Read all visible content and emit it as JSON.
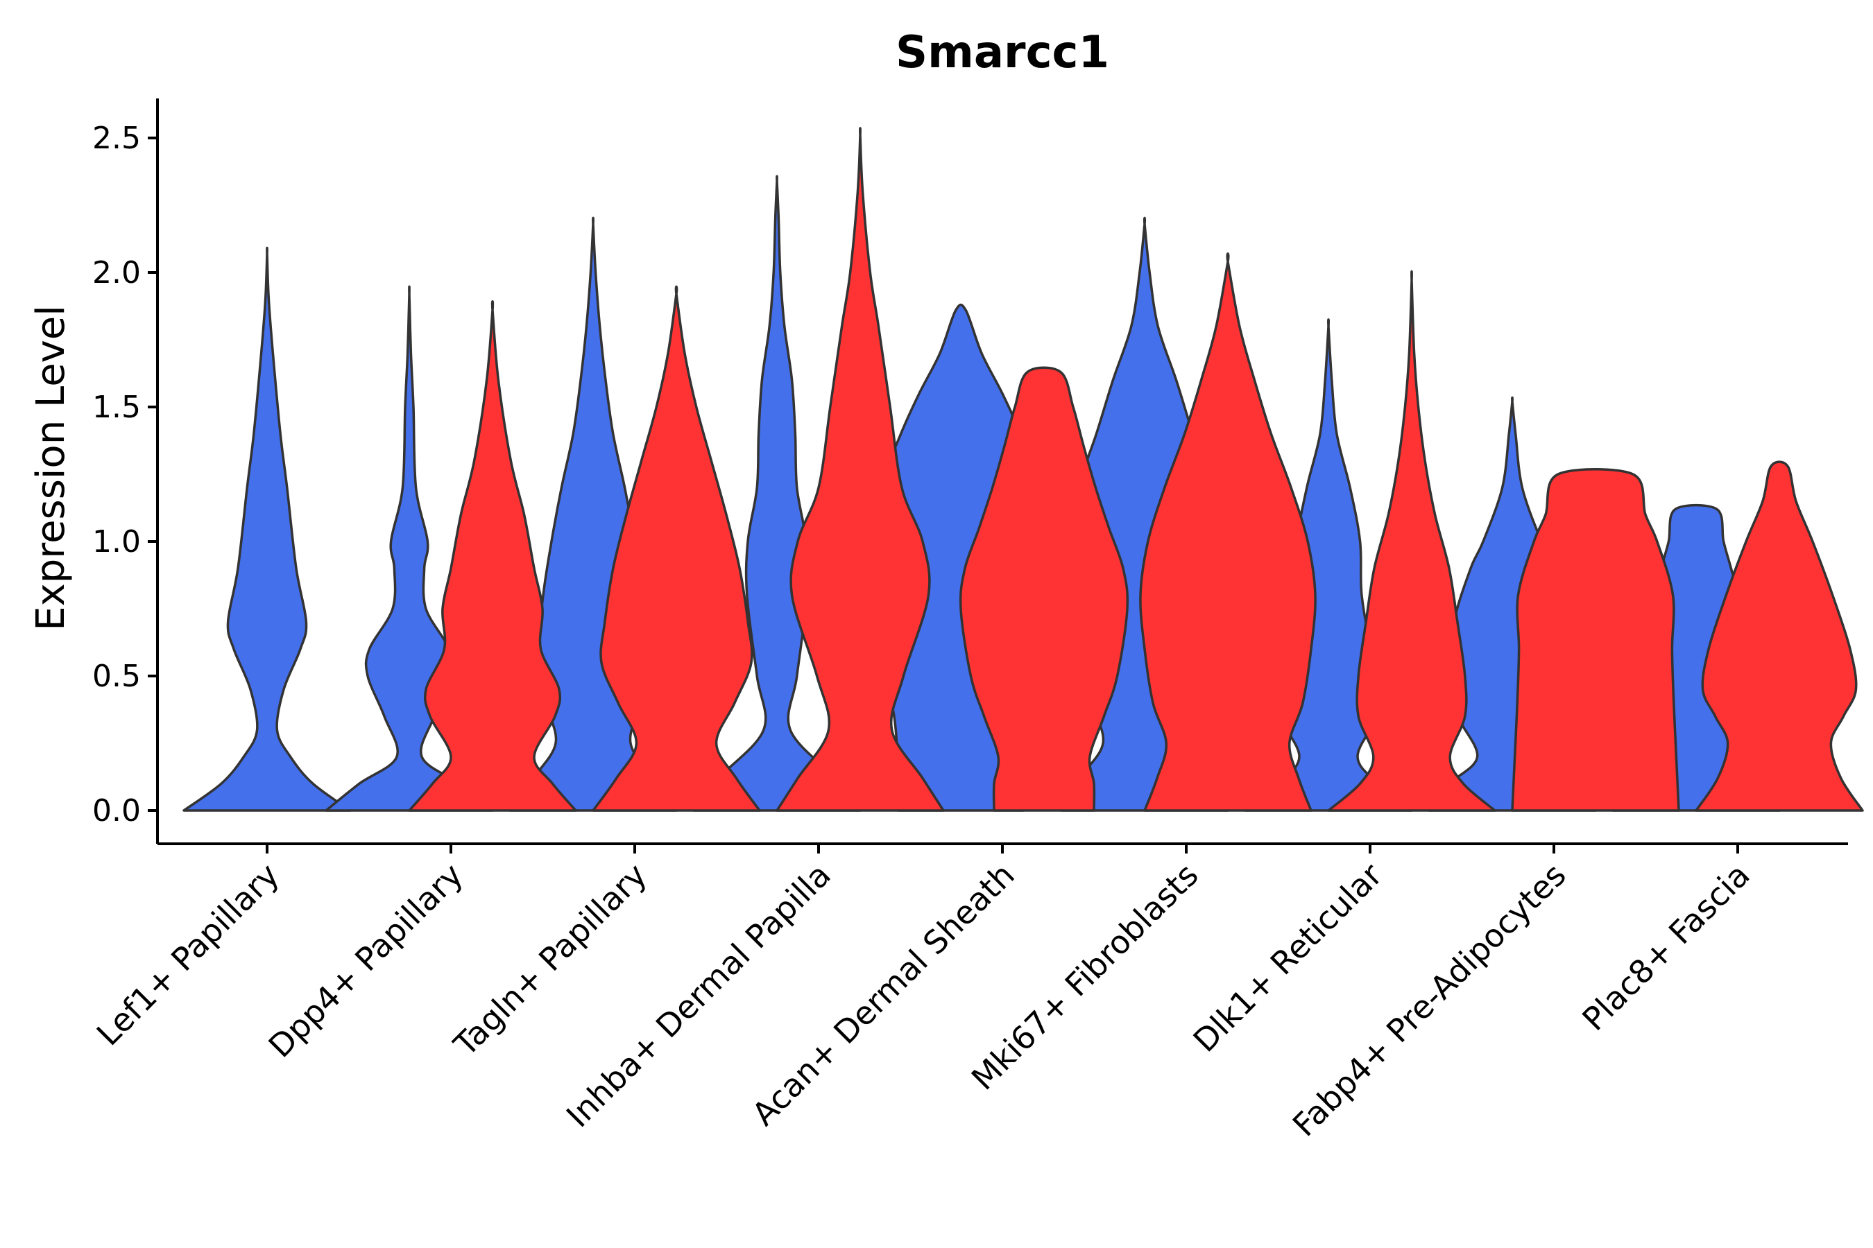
{
  "chart_data": {
    "type": "violin",
    "title": "Smarcc1",
    "xlabel": "",
    "ylabel": "Expression Level",
    "ylim": [
      -0.13,
      2.65
    ],
    "yticks": [
      "0.0",
      "0.5",
      "1.0",
      "1.5",
      "2.0",
      "2.5"
    ],
    "grid": false,
    "legend": "none",
    "colors": {
      "group1": "#4570EB",
      "group2": "#FF3333",
      "outline": "#333333"
    },
    "categories": [
      "Lef1+ Papillary",
      "Dpp4+ Papillary",
      "Tagln+ Papillary",
      "Inhba+ Dermal Papilla",
      "Acan+ Dermal Sheath",
      "Mki67+ Fibroblasts",
      "Dlk1+ Reticular",
      "Fabp4+ Pre-Adipocytes",
      "Plac8+ Fascia"
    ],
    "series": [
      {
        "name": "group1",
        "color": "#4570EB",
        "violins": [
          {
            "category": "Lef1+ Papillary",
            "max": 2.07,
            "profile": [
              [
                0,
                1.0
              ],
              [
                0.1,
                0.55
              ],
              [
                0.2,
                0.28
              ],
              [
                0.3,
                0.12
              ],
              [
                0.45,
                0.2
              ],
              [
                0.6,
                0.4
              ],
              [
                0.7,
                0.47
              ],
              [
                0.9,
                0.35
              ],
              [
                1.2,
                0.24
              ],
              [
                1.4,
                0.16
              ],
              [
                1.7,
                0.07
              ],
              [
                1.9,
                0.02
              ],
              [
                2.07,
                0
              ]
            ]
          },
          {
            "category": "Dpp4+ Papillary",
            "max": 1.92,
            "profile": [
              [
                0,
                1.0
              ],
              [
                0.1,
                0.6
              ],
              [
                0.2,
                0.15
              ],
              [
                0.35,
                0.3
              ],
              [
                0.5,
                0.5
              ],
              [
                0.6,
                0.48
              ],
              [
                0.75,
                0.2
              ],
              [
                0.9,
                0.18
              ],
              [
                1.0,
                0.22
              ],
              [
                1.2,
                0.08
              ],
              [
                1.5,
                0.05
              ],
              [
                1.7,
                0.02
              ],
              [
                1.92,
                0
              ]
            ]
          },
          {
            "category": "Tagln+ Papillary",
            "max": 2.18,
            "profile": [
              [
                0,
                1.0
              ],
              [
                0.12,
                0.72
              ],
              [
                0.25,
                0.45
              ],
              [
                0.4,
                0.56
              ],
              [
                0.6,
                0.65
              ],
              [
                0.8,
                0.6
              ],
              [
                1.0,
                0.5
              ],
              [
                1.2,
                0.38
              ],
              [
                1.4,
                0.24
              ],
              [
                1.6,
                0.15
              ],
              [
                1.8,
                0.08
              ],
              [
                2.0,
                0.03
              ],
              [
                2.18,
                0
              ]
            ]
          },
          {
            "category": "Inhba+ Dermal Papilla",
            "max": 2.34,
            "profile": [
              [
                0,
                1.0
              ],
              [
                0.12,
                0.7
              ],
              [
                0.3,
                0.16
              ],
              [
                0.5,
                0.24
              ],
              [
                0.8,
                0.36
              ],
              [
                1.0,
                0.35
              ],
              [
                1.2,
                0.24
              ],
              [
                1.4,
                0.22
              ],
              [
                1.6,
                0.18
              ],
              [
                1.8,
                0.09
              ],
              [
                2.0,
                0.04
              ],
              [
                2.2,
                0.02
              ],
              [
                2.34,
                0
              ]
            ]
          },
          {
            "category": "Acan+ Dermal Sheath",
            "max": 1.86,
            "profile": [
              [
                0,
                0.75
              ],
              [
                0.2,
                0.76
              ],
              [
                0.35,
                0.8
              ],
              [
                0.5,
                0.9
              ],
              [
                0.8,
                0.99
              ],
              [
                1.0,
                1.0
              ],
              [
                1.2,
                0.96
              ],
              [
                1.4,
                0.72
              ],
              [
                1.55,
                0.5
              ],
              [
                1.7,
                0.25
              ],
              [
                1.86,
                0.06
              ]
            ]
          },
          {
            "category": "Mki67+ Fibroblasts",
            "max": 2.18,
            "profile": [
              [
                0,
                1.0
              ],
              [
                0.12,
                0.78
              ],
              [
                0.25,
                0.5
              ],
              [
                0.4,
                0.64
              ],
              [
                0.6,
                0.85
              ],
              [
                0.8,
                0.93
              ],
              [
                1.0,
                0.92
              ],
              [
                1.2,
                0.8
              ],
              [
                1.4,
                0.58
              ],
              [
                1.6,
                0.38
              ],
              [
                1.8,
                0.16
              ],
              [
                2.0,
                0.06
              ],
              [
                2.18,
                0
              ]
            ]
          },
          {
            "category": "Dlk1+ Reticular",
            "max": 1.8,
            "profile": [
              [
                0,
                1.0
              ],
              [
                0.1,
                0.6
              ],
              [
                0.2,
                0.35
              ],
              [
                0.35,
                0.58
              ],
              [
                0.5,
                0.65
              ],
              [
                0.6,
                0.52
              ],
              [
                0.8,
                0.4
              ],
              [
                1.0,
                0.38
              ],
              [
                1.2,
                0.26
              ],
              [
                1.4,
                0.1
              ],
              [
                1.6,
                0.04
              ],
              [
                1.8,
                0
              ]
            ]
          },
          {
            "category": "Fabp4+ Pre-Adipocytes",
            "max": 1.52,
            "profile": [
              [
                0,
                1.0
              ],
              [
                0.1,
                0.75
              ],
              [
                0.2,
                0.42
              ],
              [
                0.35,
                0.65
              ],
              [
                0.5,
                0.74
              ],
              [
                0.7,
                0.7
              ],
              [
                0.9,
                0.5
              ],
              [
                1.0,
                0.35
              ],
              [
                1.2,
                0.12
              ],
              [
                1.4,
                0.04
              ],
              [
                1.52,
                0
              ]
            ]
          },
          {
            "category": "Plac8+ Fascia",
            "max": 1.12,
            "profile": [
              [
                0,
                1.0
              ],
              [
                0.12,
                0.72
              ],
              [
                0.25,
                0.52
              ],
              [
                0.4,
                0.64
              ],
              [
                0.5,
                0.65
              ],
              [
                0.6,
                0.57
              ],
              [
                0.75,
                0.55
              ],
              [
                0.9,
                0.42
              ],
              [
                1.0,
                0.33
              ],
              [
                1.12,
                0.25
              ]
            ]
          }
        ]
      },
      {
        "name": "group2",
        "color": "#FF3333",
        "violins": [
          {
            "category": "Dpp4+ Papillary",
            "max": 1.86,
            "profile": [
              [
                0,
                1.0
              ],
              [
                0.1,
                0.72
              ],
              [
                0.2,
                0.5
              ],
              [
                0.35,
                0.75
              ],
              [
                0.45,
                0.8
              ],
              [
                0.6,
                0.58
              ],
              [
                0.75,
                0.6
              ],
              [
                0.9,
                0.5
              ],
              [
                1.1,
                0.38
              ],
              [
                1.3,
                0.22
              ],
              [
                1.6,
                0.07
              ],
              [
                1.86,
                0
              ]
            ]
          },
          {
            "category": "Tagln+ Papillary",
            "max": 1.92,
            "profile": [
              [
                0,
                1.0
              ],
              [
                0.12,
                0.72
              ],
              [
                0.25,
                0.48
              ],
              [
                0.4,
                0.7
              ],
              [
                0.55,
                0.9
              ],
              [
                0.7,
                0.86
              ],
              [
                0.9,
                0.76
              ],
              [
                1.1,
                0.6
              ],
              [
                1.3,
                0.42
              ],
              [
                1.5,
                0.24
              ],
              [
                1.7,
                0.1
              ],
              [
                1.92,
                0
              ]
            ]
          },
          {
            "category": "Inhba+ Dermal Papilla",
            "max": 2.51,
            "profile": [
              [
                0,
                1.0
              ],
              [
                0.12,
                0.75
              ],
              [
                0.3,
                0.38
              ],
              [
                0.5,
                0.52
              ],
              [
                0.8,
                0.82
              ],
              [
                1.0,
                0.75
              ],
              [
                1.2,
                0.5
              ],
              [
                1.5,
                0.36
              ],
              [
                1.8,
                0.22
              ],
              [
                2.0,
                0.12
              ],
              [
                2.3,
                0.03
              ],
              [
                2.51,
                0
              ]
            ]
          },
          {
            "category": "Acan+ Dermal Sheath",
            "max": 1.63,
            "profile": [
              [
                0,
                0.6
              ],
              [
                0.1,
                0.6
              ],
              [
                0.2,
                0.55
              ],
              [
                0.35,
                0.72
              ],
              [
                0.5,
                0.88
              ],
              [
                0.75,
                1.0
              ],
              [
                0.9,
                0.95
              ],
              [
                1.05,
                0.78
              ],
              [
                1.2,
                0.62
              ],
              [
                1.35,
                0.48
              ],
              [
                1.5,
                0.35
              ],
              [
                1.63,
                0.2
              ]
            ]
          },
          {
            "category": "Mki67+ Fibroblasts",
            "max": 2.04,
            "profile": [
              [
                0,
                1.0
              ],
              [
                0.12,
                0.85
              ],
              [
                0.25,
                0.74
              ],
              [
                0.4,
                0.9
              ],
              [
                0.6,
                1.0
              ],
              [
                0.8,
                1.05
              ],
              [
                1.0,
                0.96
              ],
              [
                1.2,
                0.76
              ],
              [
                1.4,
                0.52
              ],
              [
                1.6,
                0.32
              ],
              [
                1.8,
                0.14
              ],
              [
                2.04,
                0
              ]
            ]
          },
          {
            "category": "Dlk1+ Reticular",
            "max": 1.97,
            "profile": [
              [
                0,
                1.0
              ],
              [
                0.1,
                0.62
              ],
              [
                0.2,
                0.46
              ],
              [
                0.35,
                0.64
              ],
              [
                0.5,
                0.64
              ],
              [
                0.7,
                0.55
              ],
              [
                0.9,
                0.45
              ],
              [
                1.1,
                0.28
              ],
              [
                1.3,
                0.16
              ],
              [
                1.5,
                0.08
              ],
              [
                1.7,
                0.03
              ],
              [
                1.97,
                0
              ]
            ]
          },
          {
            "category": "Fabp4+ Pre-Adipocytes",
            "max": 1.25,
            "profile": [
              [
                0,
                1.0
              ],
              [
                0.2,
                0.97
              ],
              [
                0.4,
                0.94
              ],
              [
                0.6,
                0.92
              ],
              [
                0.8,
                0.93
              ],
              [
                1.0,
                0.74
              ],
              [
                1.1,
                0.6
              ],
              [
                1.25,
                0.45
              ]
            ]
          },
          {
            "category": "Plac8+ Fascia",
            "max": 1.28,
            "profile": [
              [
                0,
                1.0
              ],
              [
                0.12,
                0.74
              ],
              [
                0.25,
                0.62
              ],
              [
                0.35,
                0.77
              ],
              [
                0.45,
                0.92
              ],
              [
                0.6,
                0.85
              ],
              [
                0.8,
                0.64
              ],
              [
                1.0,
                0.4
              ],
              [
                1.15,
                0.2
              ],
              [
                1.28,
                0.1
              ]
            ]
          }
        ]
      }
    ]
  }
}
